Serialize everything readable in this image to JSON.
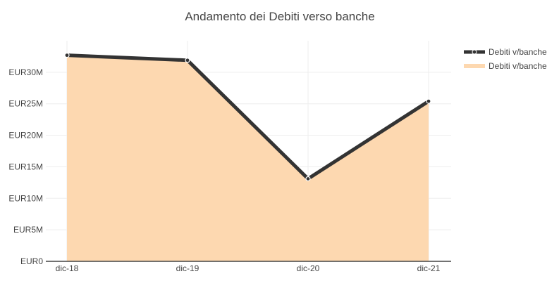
{
  "chart_data": {
    "type": "area",
    "title": "Andamento dei Debiti verso banche",
    "xlabel": "",
    "ylabel": "",
    "categories": [
      "dic-18",
      "dic-19",
      "dic-20",
      "dic-21"
    ],
    "series": [
      {
        "name": "Debiti v/banche",
        "kind": "line",
        "values": [
          32700000,
          31900000,
          13100000,
          25400000
        ],
        "color": "#333333"
      },
      {
        "name": "Debiti v/banche",
        "kind": "area",
        "values": [
          32700000,
          31900000,
          13100000,
          25400000
        ],
        "color": "#fdd8b0"
      }
    ],
    "ylim": [
      0,
      35000000
    ],
    "yticks": [
      0,
      5000000,
      10000000,
      15000000,
      20000000,
      25000000,
      30000000
    ],
    "ytick_labels": [
      "EUR0",
      "EUR5M",
      "EUR10M",
      "EUR15M",
      "EUR20M",
      "EUR25M",
      "EUR30M"
    ],
    "grid": true,
    "legend_position": "top-right"
  }
}
